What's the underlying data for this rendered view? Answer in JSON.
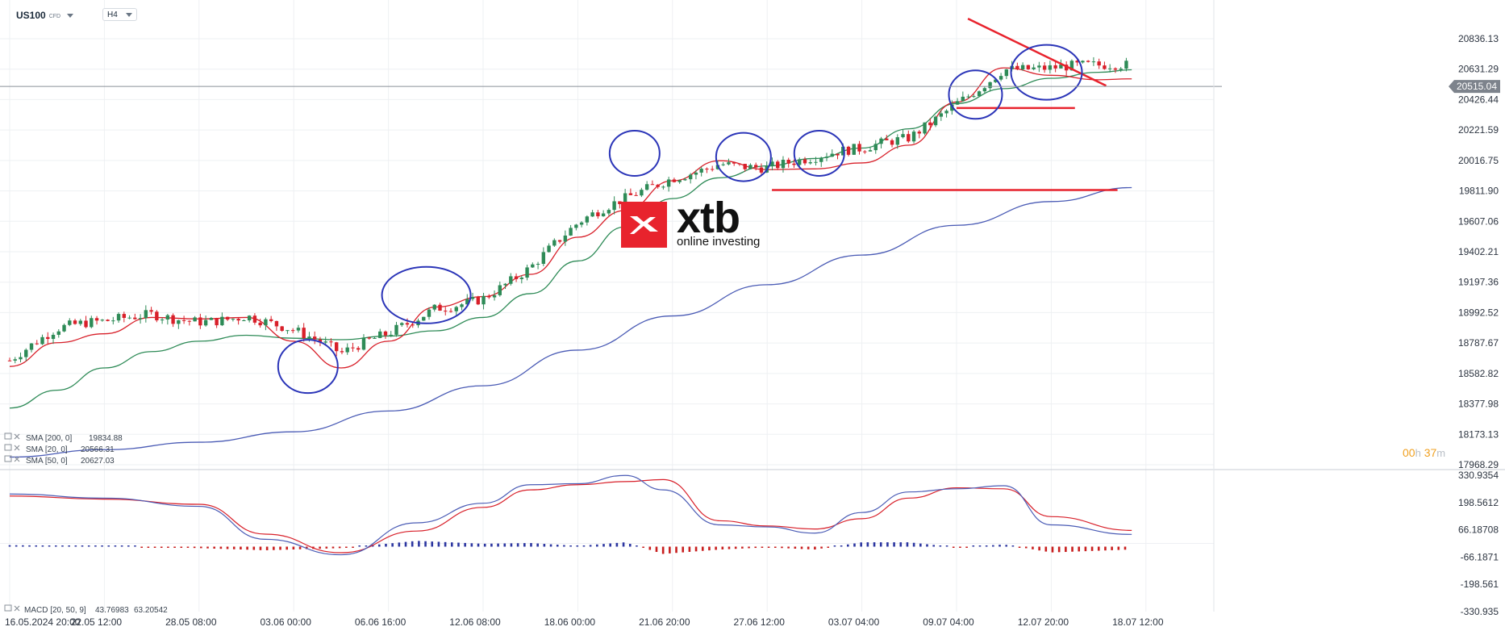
{
  "toolbar": {
    "symbol": "US100",
    "symbol_tag": "CFD",
    "interval": "H4"
  },
  "logo": {
    "name": "xtb",
    "tagline": "online investing"
  },
  "timer": {
    "hours": "00",
    "hours_unit": "h",
    "minutes": "37",
    "minutes_unit": "m"
  },
  "price_axis": {
    "ticks": [
      "20836.13",
      "20631.29",
      "20426.44",
      "20221.59",
      "20016.75",
      "19811.90",
      "19607.06",
      "19402.21",
      "19197.36",
      "18992.52",
      "18787.67",
      "18582.82",
      "18377.98",
      "18173.13",
      "17968.29"
    ],
    "last_price": "20515.04"
  },
  "macd_axis": {
    "ticks": [
      "330.9354",
      "198.5612",
      "66.18708",
      "-66.1871",
      "-198.561",
      "-330.935"
    ]
  },
  "time_axis": {
    "ticks": [
      "16.05.2024 20:00",
      "22.05 12:00",
      "28.05 08:00",
      "03.06 00:00",
      "06.06 16:00",
      "12.06 08:00",
      "18.06 00:00",
      "21.06 20:00",
      "27.06 12:00",
      "03.07 04:00",
      "09.07 04:00",
      "12.07 20:00",
      "18.07 12:00"
    ]
  },
  "indicators": [
    {
      "label": "SMA [200, 0]",
      "value": "19834.88"
    },
    {
      "label": "SMA [20, 0]",
      "value": "20566.31"
    },
    {
      "label": "SMA [50, 0]",
      "value": "20627.03"
    }
  ],
  "macd_legend": {
    "label": "MACD [20, 50, 9]",
    "value1": "43.76983",
    "value2": "63.20542"
  },
  "colors": {
    "up": "#2e8b57",
    "down": "#d8202a",
    "sma20": "#d8202a",
    "sma50": "#2e8b57",
    "sma200": "#4a5bb5",
    "annotation": "#e8232d",
    "circle": "#2b35b8",
    "hist_pos": "#2b35a0",
    "hist_neg": "#c81e1e"
  },
  "chart_data": {
    "type": "candlestick",
    "title": "",
    "x_dates": [
      "16.05.2024 20:00",
      "22.05 12:00",
      "28.05 08:00",
      "03.06 00:00",
      "06.06 16:00",
      "12.06 08:00",
      "18.06 00:00",
      "21.06 20:00",
      "27.06 12:00",
      "03.07 04:00",
      "09.07 04:00",
      "12.07 20:00",
      "18.07 12:00"
    ],
    "ylim": [
      17968.29,
      20971
    ],
    "series": [
      {
        "name": "SMA [20, 0]",
        "type": "line",
        "x": [
          0,
          0.5,
          1,
          1.5,
          2,
          2.5,
          3,
          3.5,
          4,
          4.5,
          5,
          5.5,
          6,
          6.5,
          7,
          7.5,
          8,
          8.5,
          9,
          9.5,
          10,
          10.5,
          11,
          11.5,
          11.85
        ],
        "y": [
          18630,
          18790,
          18850,
          18960,
          18950,
          18960,
          18800,
          18620,
          18800,
          19030,
          19100,
          19250,
          19500,
          19680,
          19880,
          20015,
          19955,
          19960,
          20000,
          20120,
          20410,
          20640,
          20590,
          20560,
          20566
        ]
      },
      {
        "name": "SMA [50, 0]",
        "type": "line",
        "x": [
          0,
          0.5,
          1,
          1.5,
          2,
          2.5,
          3,
          3.5,
          4,
          4.5,
          5,
          5.5,
          6,
          6.5,
          7,
          7.5,
          8,
          8.5,
          9,
          9.5,
          10,
          10.5,
          11,
          11.5,
          11.85
        ],
        "y": [
          18350,
          18470,
          18620,
          18730,
          18800,
          18840,
          18820,
          18810,
          18835,
          18870,
          18960,
          19120,
          19340,
          19570,
          19760,
          19900,
          19980,
          20030,
          20100,
          20230,
          20400,
          20500,
          20570,
          20610,
          20627
        ]
      },
      {
        "name": "SMA [200, 0]",
        "type": "line",
        "x": [
          0,
          1,
          2,
          3,
          4,
          5,
          6,
          7,
          8,
          9,
          10,
          11,
          11.85
        ],
        "y": [
          18020,
          18070,
          18120,
          18190,
          18330,
          18500,
          18740,
          18970,
          19180,
          19380,
          19580,
          19740,
          19834
        ]
      },
      {
        "name": "MACD",
        "type": "line",
        "x": [
          0,
          1,
          2,
          2.7,
          3.5,
          4.3,
          5,
          5.5,
          6,
          6.5,
          6.9,
          7.5,
          8,
          8.5,
          9,
          9.5,
          10,
          10.5,
          11,
          11.85
        ],
        "y": [
          240,
          220,
          180,
          20,
          -55,
          100,
          195,
          285,
          290,
          330,
          260,
          90,
          80,
          50,
          150,
          250,
          265,
          280,
          90,
          43.77
        ]
      },
      {
        "name": "Signal",
        "type": "line",
        "x": [
          0,
          1,
          2,
          2.7,
          3.5,
          4.3,
          5,
          5.5,
          6,
          6.5,
          6.9,
          7.5,
          8,
          8.5,
          9,
          9.5,
          10,
          10.5,
          11,
          11.85
        ],
        "y": [
          230,
          215,
          190,
          45,
          -45,
          60,
          175,
          260,
          285,
          300,
          310,
          110,
          85,
          70,
          120,
          220,
          270,
          265,
          130,
          63.21
        ]
      }
    ],
    "annotations": {
      "trendline": {
        "x": [
          10.12,
          11.58
        ],
        "y": [
          20971,
          20520
        ]
      },
      "support_lines": [
        {
          "x": [
            10.0,
            11.25
          ],
          "y": 20370
        },
        {
          "x": [
            8.05,
            11.7
          ],
          "y": 19818
        }
      ],
      "circled_dates": [
        "03.06 00:00",
        "06.06 16:00",
        "18.06 00:00",
        "21.06 20:00",
        "27.06 12:00",
        "09.07 04:00",
        "12.07 20:00"
      ]
    }
  }
}
